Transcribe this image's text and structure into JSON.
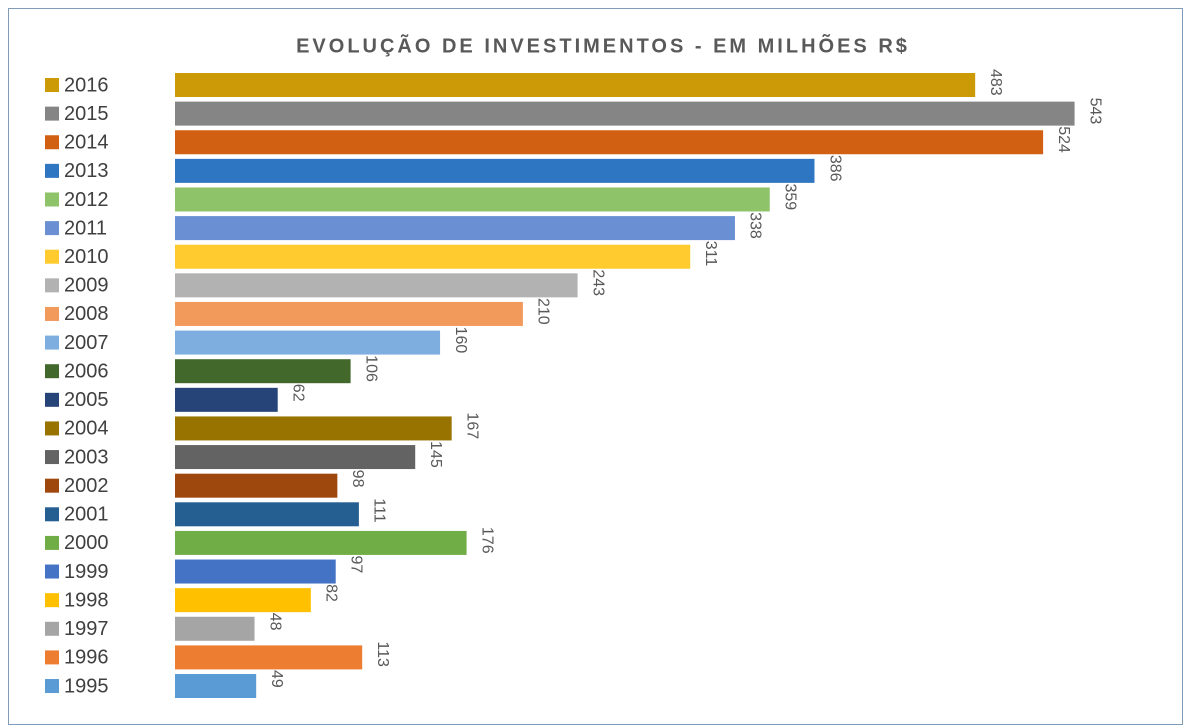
{
  "chart_data": {
    "type": "barh",
    "title": "EVOLUÇÃO DE INVESTIMENTOS - EM MILHÕES R$",
    "categories": [
      "2016",
      "2015",
      "2014",
      "2013",
      "2012",
      "2011",
      "2010",
      "2009",
      "2008",
      "2007",
      "2006",
      "2005",
      "2004",
      "2003",
      "2002",
      "2001",
      "2000",
      "1999",
      "1998",
      "1997",
      "1996",
      "1995"
    ],
    "values": [
      483,
      543,
      524,
      386,
      359,
      338,
      311,
      243,
      210,
      160,
      106,
      62,
      167,
      145,
      98,
      111,
      176,
      97,
      82,
      48,
      113,
      49
    ],
    "colors": [
      "#cc9a06",
      "#858585",
      "#d26012",
      "#2e75c2",
      "#8ec36a",
      "#6a8fd2",
      "#ffcb2e",
      "#b2b2b2",
      "#f2995c",
      "#7eaedf",
      "#43682b",
      "#264478",
      "#997300",
      "#636363",
      "#9e480e",
      "#255e91",
      "#70ad47",
      "#4472c4",
      "#ffc000",
      "#a5a5a5",
      "#ed7d31",
      "#5b9bd5"
    ],
    "xlim": [
      0,
      600
    ],
    "legend": "left"
  }
}
